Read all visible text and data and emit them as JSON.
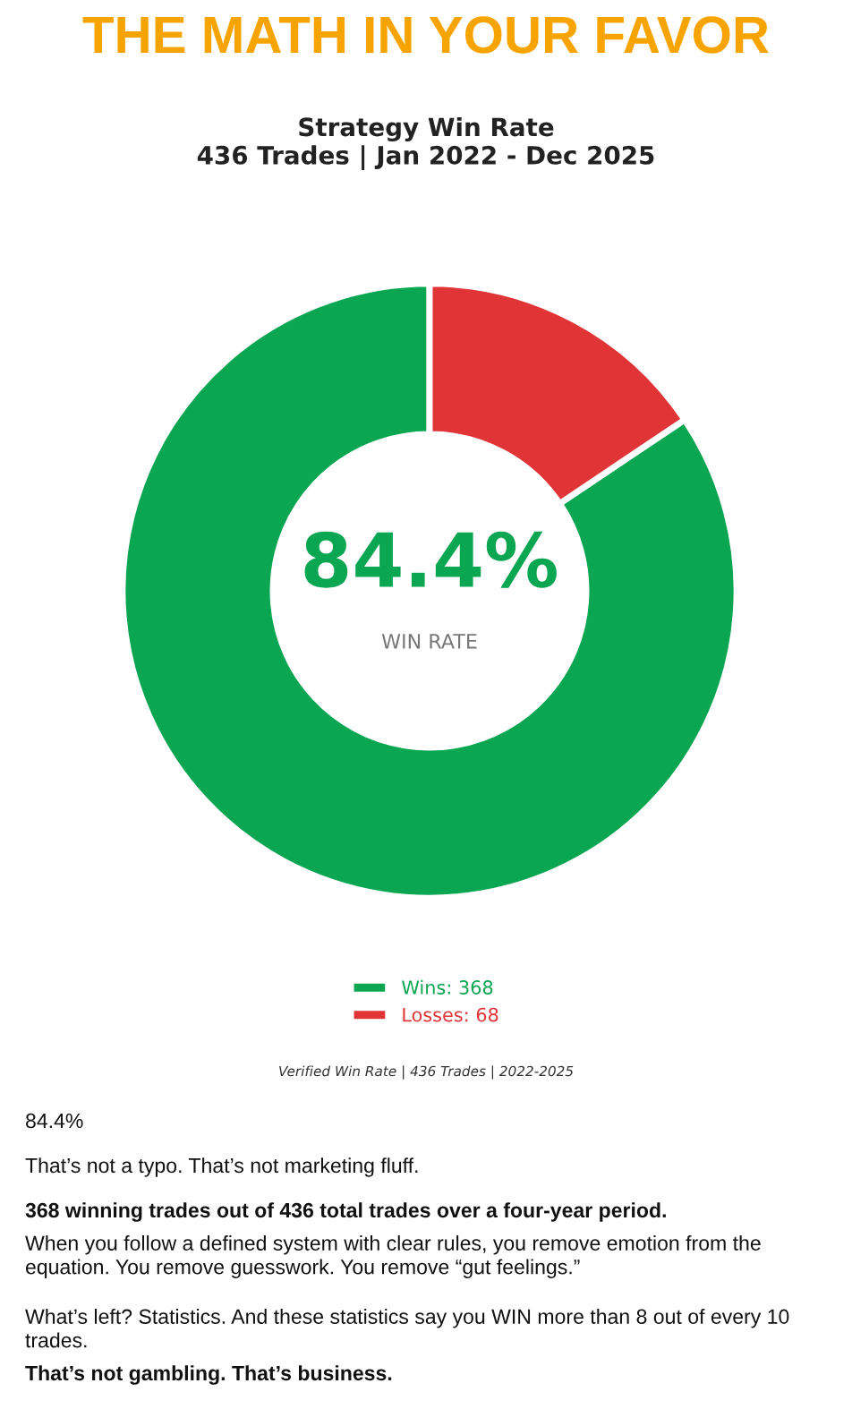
{
  "chart_data": {
    "type": "donut",
    "title": "Strategy Win Rate",
    "subtitle": "436 Trades | Jan 2022 - Dec 2025",
    "categories": [
      "Wins: 368",
      "Losses: 68"
    ],
    "values": [
      368,
      68
    ],
    "colors": [
      "#0ba651",
      "#e03437"
    ],
    "legend": "bottom",
    "annotations": [
      "THE MATH IN YOUR FAVOR",
      "84.4%",
      "WIN RATE",
      "Verified Win Rate | 436 Trades | 2022-2025",
      "84.4%",
      "That’s not a typo. That’s not marketing fluff.",
      "368 winning trades out of 436 total trades over a four-year period.",
      "When you follow a defined system with clear rules, you remove emotion from the equation. You remove guesswork. You remove “gut feelings.”",
      "What’s left? Statistics. And these statistics say you WIN more than 8 out of every 10 trades.",
      "That’s not gambling. That’s business."
    ]
  }
}
